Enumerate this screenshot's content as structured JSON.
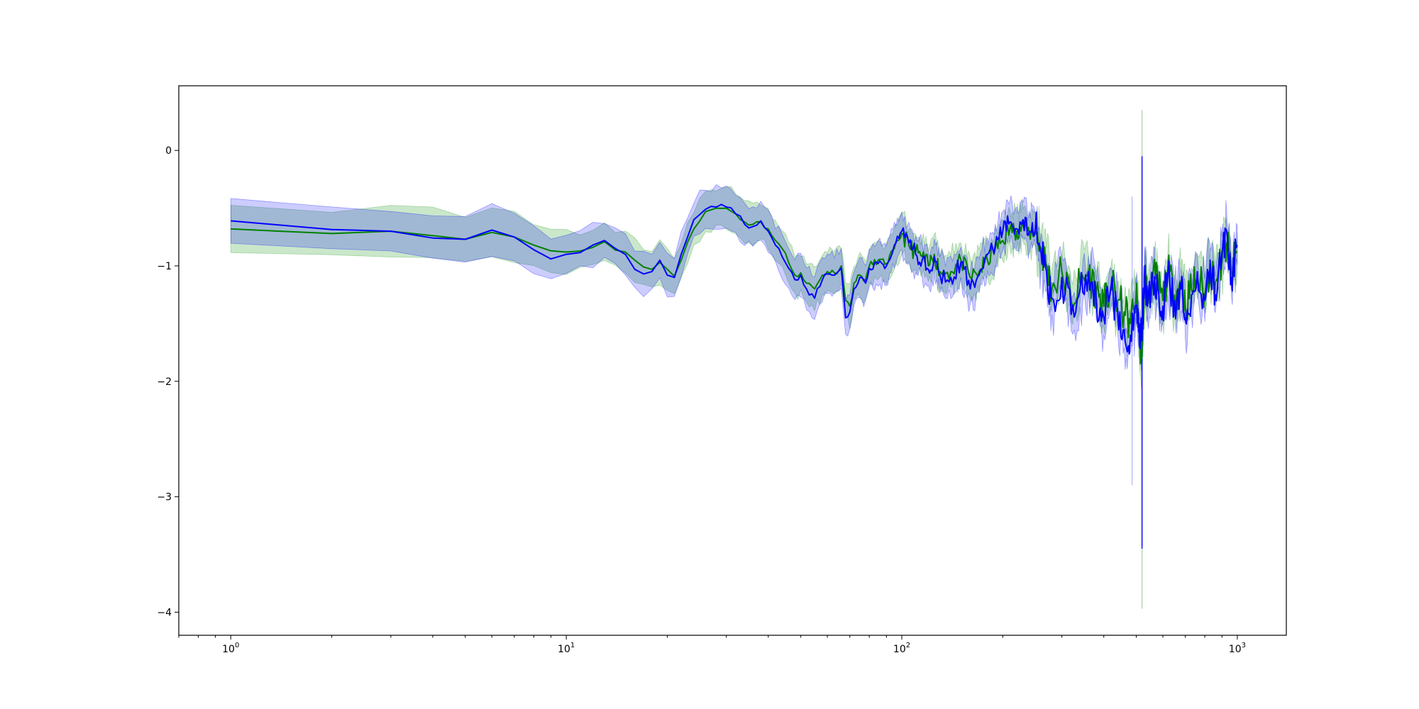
{
  "chart_data": {
    "type": "line",
    "title": "",
    "xlabel": "",
    "ylabel": "",
    "x_scale": "log",
    "xlim": [
      0.7,
      1400
    ],
    "ylim": [
      -4.2,
      0.56
    ],
    "grid": false,
    "legend": "none",
    "x_ticks": [
      {
        "value": 1,
        "base": "10",
        "exp": "0"
      },
      {
        "value": 10,
        "base": "10",
        "exp": "1"
      },
      {
        "value": 100,
        "base": "10",
        "exp": "2"
      },
      {
        "value": 1000,
        "base": "10",
        "exp": "3"
      }
    ],
    "y_ticks": [
      {
        "value": 0,
        "label": "0"
      },
      {
        "value": -1,
        "label": "−1"
      },
      {
        "value": -2,
        "label": "−2"
      },
      {
        "value": -3,
        "label": "−3"
      },
      {
        "value": -4,
        "label": "−4"
      }
    ],
    "series": [
      {
        "color": "#008000",
        "band_color": "#2ca02c",
        "band_opacity": 0.25,
        "x": [
          1,
          3,
          5,
          6,
          7,
          8,
          9,
          10,
          12,
          13,
          15,
          16,
          17,
          18,
          19,
          20,
          21,
          22,
          24,
          26,
          28,
          30,
          32,
          34,
          36,
          38,
          40,
          42,
          44,
          46,
          48,
          50,
          52,
          55,
          58,
          60,
          63,
          66,
          68,
          70,
          72,
          75,
          78,
          80,
          85,
          90,
          95,
          100,
          105,
          110,
          115,
          120,
          125,
          130,
          140,
          150,
          160,
          170,
          180,
          190,
          200,
          210,
          220,
          230,
          240,
          250,
          260,
          270,
          280,
          300,
          320,
          340,
          360,
          380,
          400,
          420,
          440,
          460,
          480,
          500,
          510,
          520,
          530,
          540,
          560,
          580,
          600,
          620,
          650,
          680,
          700,
          730,
          760,
          800,
          830,
          860,
          900,
          930,
          960,
          1000
        ],
        "y": [
          -0.68,
          -0.7,
          -0.77,
          -0.71,
          -0.75,
          -0.82,
          -0.87,
          -0.88,
          -0.84,
          -0.79,
          -0.88,
          -0.95,
          -1.01,
          -1.03,
          -0.97,
          -1.03,
          -1.09,
          -0.95,
          -0.68,
          -0.53,
          -0.5,
          -0.5,
          -0.55,
          -0.62,
          -0.64,
          -0.62,
          -0.68,
          -0.78,
          -0.85,
          -0.97,
          -1.08,
          -1.06,
          -1.15,
          -1.2,
          -1.08,
          -1.05,
          -1.06,
          -1.0,
          -1.3,
          -1.35,
          -1.15,
          -1.08,
          -1.12,
          -1.0,
          -0.95,
          -0.98,
          -0.85,
          -0.72,
          -0.82,
          -0.88,
          -0.92,
          -1.0,
          -0.9,
          -1.05,
          -1.05,
          -0.95,
          -1.1,
          -1.05,
          -0.95,
          -0.85,
          -0.78,
          -0.68,
          -0.7,
          -0.65,
          -0.72,
          -0.7,
          -0.85,
          -1.0,
          -1.2,
          -1.05,
          -1.3,
          -1.15,
          -1.05,
          -1.22,
          -1.35,
          -1.18,
          -1.3,
          -1.4,
          -1.5,
          -1.25,
          -1.55,
          -1.8,
          -1.05,
          -1.3,
          -1.1,
          -1.15,
          -1.3,
          -1.05,
          -1.25,
          -1.15,
          -1.35,
          -1.2,
          -1.1,
          -1.25,
          -1.0,
          -1.15,
          -0.95,
          -0.8,
          -1.05,
          -0.88
        ]
      },
      {
        "color": "#0000ff",
        "band_color": "#0000ff",
        "band_opacity": 0.2,
        "x": [
          1,
          3,
          5,
          6,
          7,
          8,
          9,
          10,
          12,
          13,
          15,
          16,
          17,
          18,
          19,
          20,
          21,
          22,
          24,
          26,
          28,
          30,
          32,
          34,
          36,
          38,
          40,
          42,
          44,
          46,
          48,
          50,
          52,
          55,
          58,
          60,
          63,
          66,
          68,
          70,
          72,
          75,
          78,
          80,
          85,
          90,
          95,
          100,
          105,
          110,
          115,
          120,
          125,
          130,
          140,
          150,
          160,
          170,
          180,
          190,
          200,
          210,
          220,
          230,
          240,
          250,
          260,
          270,
          280,
          300,
          320,
          340,
          360,
          380,
          400,
          420,
          440,
          460,
          480,
          500,
          510,
          520,
          530,
          540,
          560,
          580,
          600,
          620,
          650,
          680,
          700,
          730,
          760,
          800,
          830,
          860,
          900,
          930,
          960,
          1000
        ],
        "y": [
          -0.61,
          -0.7,
          -0.77,
          -0.69,
          -0.75,
          -0.86,
          -0.94,
          -0.9,
          -0.82,
          -0.78,
          -0.9,
          -1.03,
          -1.07,
          -1.05,
          -0.95,
          -1.08,
          -1.1,
          -0.9,
          -0.6,
          -0.51,
          -0.49,
          -0.49,
          -0.55,
          -0.64,
          -0.66,
          -0.61,
          -0.7,
          -0.82,
          -0.92,
          -1.02,
          -1.12,
          -1.08,
          -1.2,
          -1.28,
          -1.12,
          -1.07,
          -1.08,
          -1.02,
          -1.45,
          -1.4,
          -1.2,
          -1.1,
          -1.15,
          -1.02,
          -0.98,
          -1.0,
          -0.82,
          -0.7,
          -0.8,
          -0.9,
          -0.95,
          -1.03,
          -0.92,
          -1.08,
          -1.1,
          -0.97,
          -1.2,
          -1.08,
          -0.9,
          -0.82,
          -0.7,
          -0.62,
          -0.68,
          -0.6,
          -0.7,
          -0.68,
          -0.88,
          -1.05,
          -1.28,
          -1.1,
          -1.42,
          -1.2,
          -1.05,
          -1.3,
          -1.45,
          -1.2,
          -1.38,
          -1.55,
          -1.6,
          -1.35,
          -1.5,
          -1.65,
          -1.0,
          -1.35,
          -1.15,
          -1.2,
          -1.35,
          -1.1,
          -1.3,
          -1.2,
          -1.45,
          -1.25,
          -1.05,
          -1.3,
          -0.95,
          -1.25,
          -0.88,
          -0.7,
          -1.1,
          -0.82
        ]
      }
    ]
  }
}
